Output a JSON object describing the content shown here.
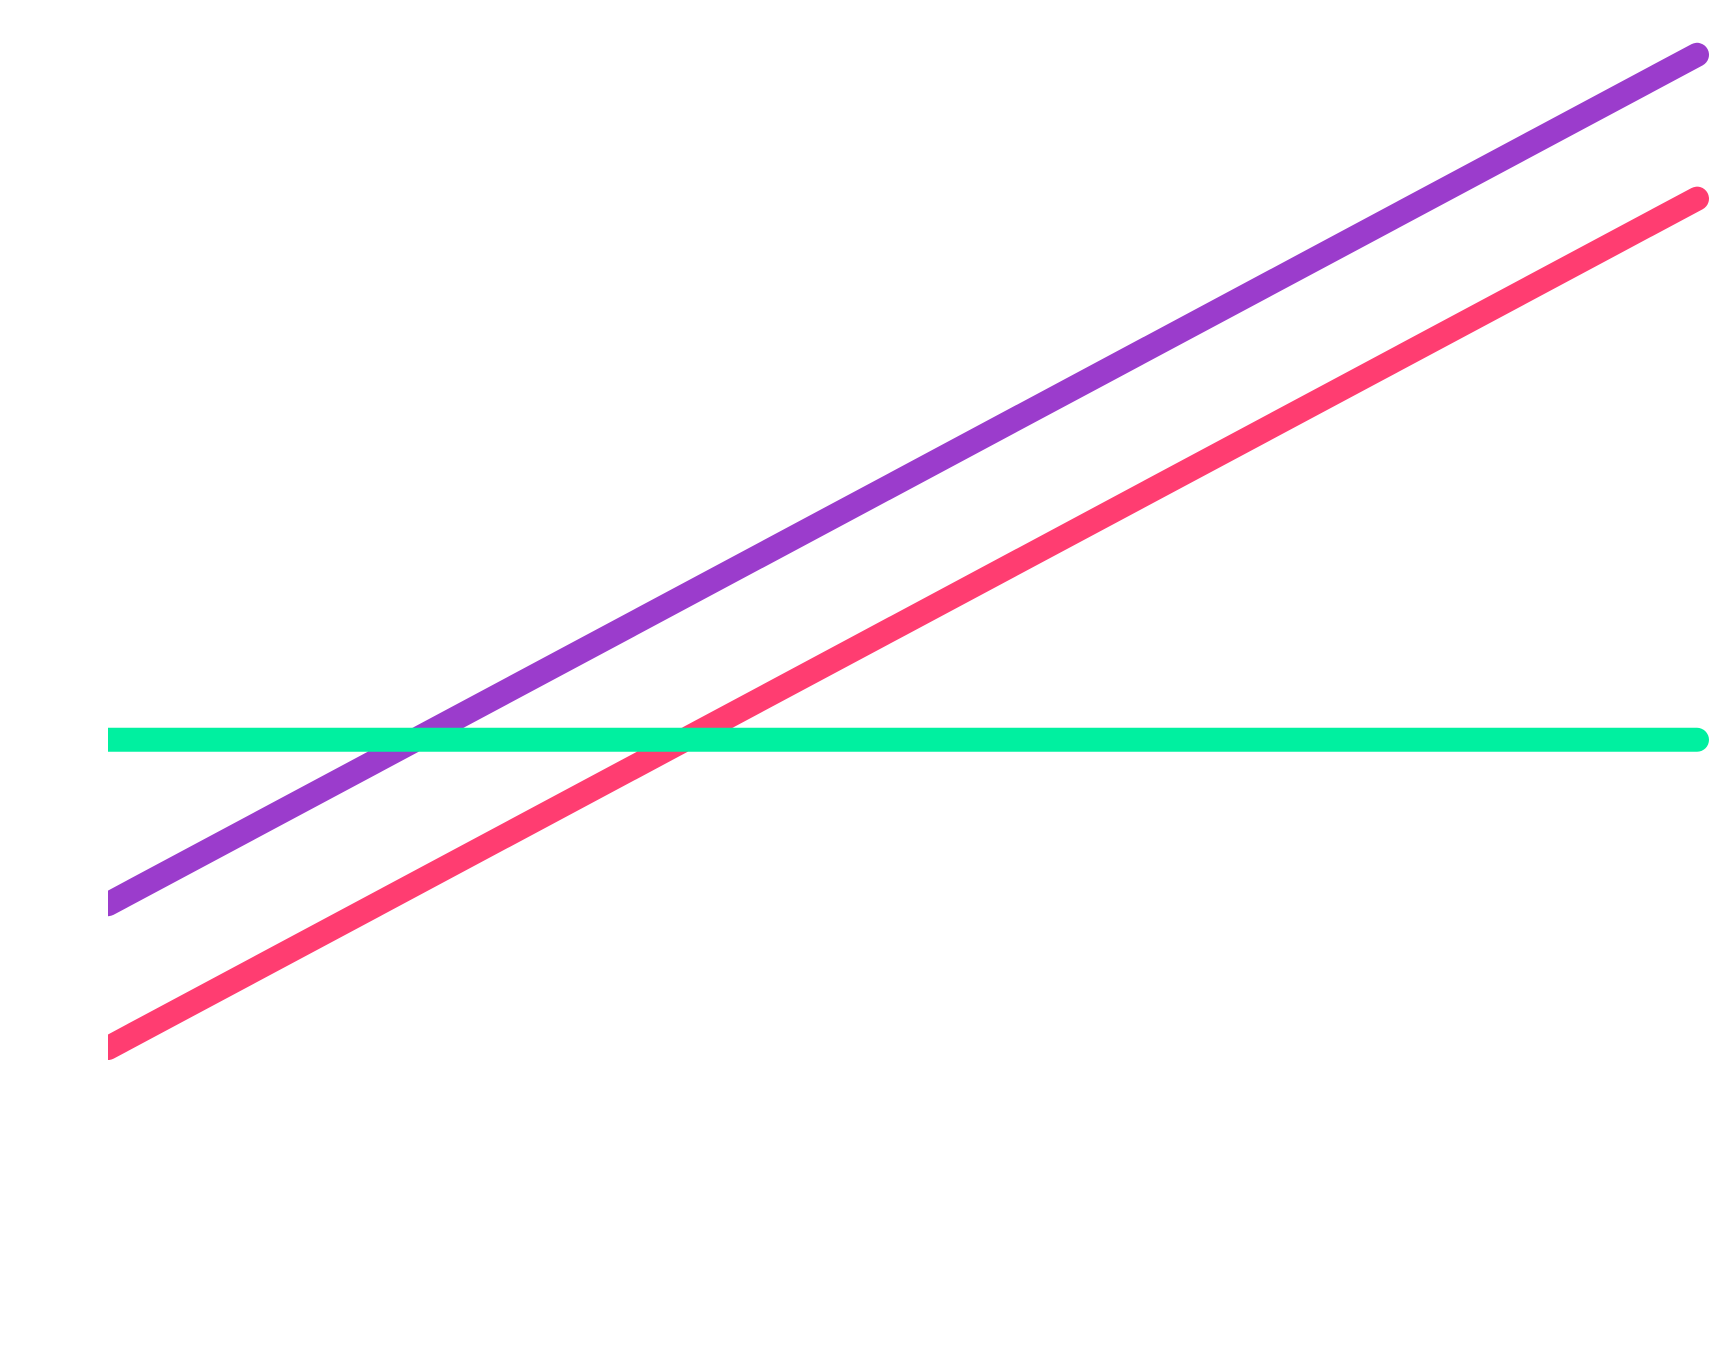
{
  "chart_data": {
    "type": "line",
    "title": "",
    "xlabel": "",
    "ylabel": "",
    "x": [
      0,
      1
    ],
    "xlim": [
      0,
      1
    ],
    "ylim": [
      0,
      1
    ],
    "grid": false,
    "legend": "none",
    "series": [
      {
        "values": [
          0.34,
          0.96
        ],
        "color": "#9b3ccc"
      },
      {
        "values": [
          0.235,
          0.855
        ],
        "color": "#ff3d71"
      },
      {
        "values": [
          0.46,
          0.46
        ],
        "color": "#00f0a0"
      }
    ]
  }
}
